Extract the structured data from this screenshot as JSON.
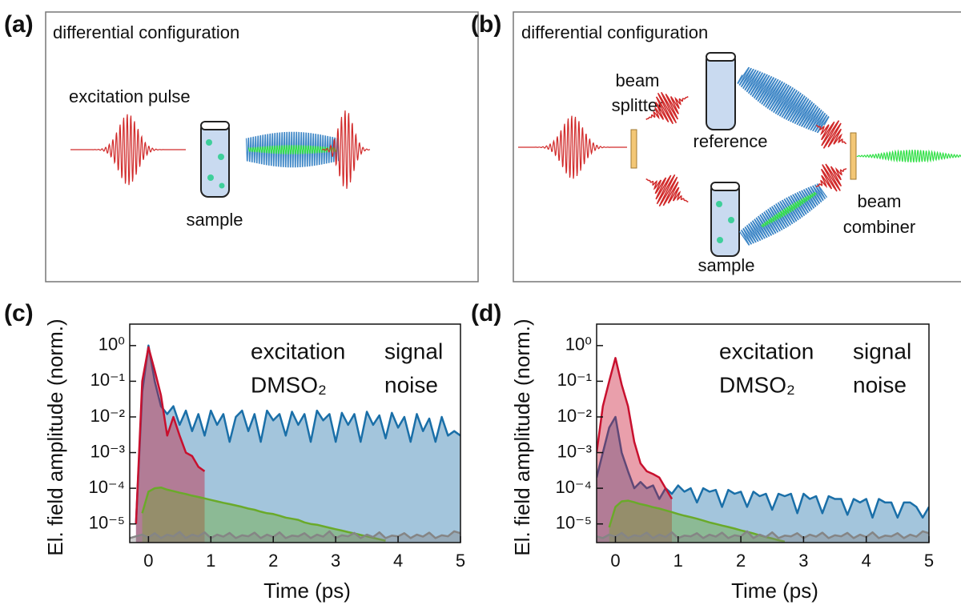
{
  "diagrams": [
    {
      "label": "(a)",
      "title": "differential configuration",
      "texts": [
        "excitation pulse",
        "sample"
      ]
    },
    {
      "label": "(b)",
      "title": "differential configuration",
      "texts": [
        "beam",
        "splitter",
        "reference",
        "sample",
        "beam",
        "combiner"
      ]
    }
  ],
  "chart_data": [
    {
      "type": "line",
      "panel_label": "(c)",
      "xlabel": "Time (ps)",
      "ylabel": "El. field amplitude (norm.)",
      "y_scale": "log",
      "legend": "upper right",
      "fill": true,
      "xlim": [
        -0.3,
        5
      ],
      "xticks": [
        0,
        1,
        2,
        3,
        4,
        5
      ],
      "ylim": [
        3e-06,
        4
      ],
      "yticks": [
        {
          "value": 1e-05,
          "label": "10⁻⁵"
        },
        {
          "value": 0.0001,
          "label": "10⁻⁴"
        },
        {
          "value": 0.001,
          "label": "10⁻³"
        },
        {
          "value": 0.01,
          "label": "10⁻²"
        },
        {
          "value": 0.1,
          "label": "10⁻¹"
        },
        {
          "value": 1,
          "label": "10⁰"
        }
      ],
      "x": [
        -0.3,
        -0.2,
        -0.1,
        0,
        0.1,
        0.2,
        0.3,
        0.4,
        0.5,
        0.6,
        0.7,
        0.8,
        0.9,
        1.0,
        1.1,
        1.2,
        1.3,
        1.4,
        1.5,
        1.6,
        1.7,
        1.8,
        1.9,
        2.0,
        2.1,
        2.2,
        2.3,
        2.4,
        2.5,
        2.6,
        2.7,
        2.8,
        2.9,
        3.0,
        3.1,
        3.2,
        3.3,
        3.4,
        3.5,
        3.6,
        3.7,
        3.8,
        3.9,
        4.0,
        4.1,
        4.2,
        4.3,
        4.4,
        4.5,
        4.6,
        4.7,
        4.8,
        4.9,
        5.0
      ],
      "series": [
        {
          "name": "excitation",
          "color": "#c8102e",
          "values": [
            null,
            1e-05,
            0.1,
            0.9,
            0.2,
            0.04,
            0.003,
            0.01,
            0.003,
            0.001,
            0.0008,
            0.0004,
            0.0003,
            null,
            null,
            null,
            null,
            null,
            null,
            null,
            null,
            null,
            null,
            null,
            null,
            null,
            null,
            null,
            null,
            null,
            null,
            null,
            null,
            null,
            null,
            null,
            null,
            null,
            null,
            null,
            null,
            null,
            null,
            null,
            null,
            null,
            null,
            null,
            null,
            null,
            null,
            null,
            null,
            null
          ]
        },
        {
          "name": "signal",
          "color": "#1a6fa8",
          "values": [
            null,
            1e-05,
            0.05,
            1.0,
            0.1,
            0.02,
            0.012,
            0.02,
            0.006,
            0.015,
            0.004,
            0.012,
            0.003,
            0.015,
            0.006,
            0.012,
            0.002,
            0.01,
            0.015,
            0.004,
            0.012,
            0.002,
            0.015,
            0.008,
            0.012,
            0.003,
            0.014,
            0.006,
            0.012,
            0.002,
            0.015,
            0.008,
            0.012,
            0.002,
            0.013,
            0.006,
            0.012,
            0.002,
            0.014,
            0.006,
            0.011,
            0.0025,
            0.013,
            0.005,
            0.01,
            0.002,
            0.012,
            0.004,
            0.009,
            0.002,
            0.01,
            0.003,
            0.004,
            0.003
          ]
        },
        {
          "name": "DMSO₂",
          "color": "#6aaa2a",
          "values": [
            null,
            null,
            2e-05,
            8e-05,
            0.0001,
            0.000105,
            9.1e-05,
            8.3e-05,
            7.5e-05,
            6.9e-05,
            6.2e-05,
            5.7e-05,
            5.2e-05,
            4.7e-05,
            4.3e-05,
            3.9e-05,
            3.6e-05,
            3.3e-05,
            3e-05,
            2.7e-05,
            2.5e-05,
            2.2e-05,
            2e-05,
            1.9e-05,
            1.7e-05,
            1.5e-05,
            1.4e-05,
            1.3e-05,
            1.1e-05,
            1e-05,
            9.5e-06,
            8.6e-06,
            7.8e-06,
            7.1e-06,
            6.5e-06,
            5.9e-06,
            5.4e-06,
            4.9e-06,
            4.5e-06,
            4.1e-06,
            3.7e-06,
            3.4e-06,
            null,
            null,
            null,
            null,
            null,
            null,
            null,
            null,
            null,
            null,
            null,
            null
          ]
        },
        {
          "name": "noise",
          "color": "#858585",
          "values": [
            4e-06,
            4.5e-06,
            5e-06,
            4.2e-06,
            5.5e-06,
            4e-06,
            5e-06,
            4.5e-06,
            6e-06,
            4e-06,
            5e-06,
            4.5e-06,
            5.8e-06,
            4e-06,
            5e-06,
            4.4e-06,
            5.6e-06,
            4e-06,
            4.8e-06,
            4.5e-06,
            5.7e-06,
            4e-06,
            5e-06,
            4.3e-06,
            5.8e-06,
            4e-06,
            4.7e-06,
            4.5e-06,
            5.5e-06,
            4e-06,
            5e-06,
            4.4e-06,
            6.2e-06,
            4e-06,
            4.8e-06,
            4.5e-06,
            5.6e-06,
            4e-06,
            5e-06,
            4.3e-06,
            5.8e-06,
            4e-06,
            4.7e-06,
            4.5e-06,
            5.5e-06,
            4e-06,
            5e-06,
            4.4e-06,
            5.7e-06,
            4e-06,
            4.8e-06,
            4.5e-06,
            6.2e-06,
            5.5e-06
          ]
        }
      ]
    },
    {
      "type": "line",
      "panel_label": "(d)",
      "xlabel": "Time (ps)",
      "ylabel": "El. field amplitude (norm.)",
      "y_scale": "log",
      "legend": "upper right",
      "fill": true,
      "xlim": [
        -0.3,
        5
      ],
      "xticks": [
        0,
        1,
        2,
        3,
        4,
        5
      ],
      "ylim": [
        3e-06,
        4
      ],
      "yticks": [
        {
          "value": 1e-05,
          "label": "10⁻⁵"
        },
        {
          "value": 0.0001,
          "label": "10⁻⁴"
        },
        {
          "value": 0.001,
          "label": "10⁻³"
        },
        {
          "value": 0.01,
          "label": "10⁻²"
        },
        {
          "value": 0.1,
          "label": "10⁻¹"
        },
        {
          "value": 1,
          "label": "10⁰"
        }
      ],
      "x": [
        -0.3,
        -0.2,
        -0.1,
        0,
        0.1,
        0.2,
        0.3,
        0.4,
        0.5,
        0.6,
        0.7,
        0.8,
        0.9,
        1.0,
        1.1,
        1.2,
        1.3,
        1.4,
        1.5,
        1.6,
        1.7,
        1.8,
        1.9,
        2.0,
        2.1,
        2.2,
        2.3,
        2.4,
        2.5,
        2.6,
        2.7,
        2.8,
        2.9,
        3.0,
        3.1,
        3.2,
        3.3,
        3.4,
        3.5,
        3.6,
        3.7,
        3.8,
        3.9,
        4.0,
        4.1,
        4.2,
        4.3,
        4.4,
        4.5,
        4.6,
        4.7,
        4.8,
        4.9,
        5.0
      ],
      "series": [
        {
          "name": "excitation",
          "color": "#c8102e",
          "values": [
            0.001,
            0.02,
            0.1,
            0.45,
            0.08,
            0.02,
            0.002,
            0.0005,
            0.0003,
            0.00025,
            0.0002,
            0.0001,
            5e-05,
            null,
            null,
            null,
            null,
            null,
            null,
            null,
            null,
            null,
            null,
            null,
            null,
            null,
            null,
            null,
            null,
            null,
            null,
            null,
            null,
            null,
            null,
            null,
            null,
            null,
            null,
            null,
            null,
            null,
            null,
            null,
            null,
            null,
            null,
            null,
            null,
            null,
            null,
            null,
            null,
            null
          ]
        },
        {
          "name": "signal",
          "color": "#1a6fa8",
          "values": [
            0.0002,
            0.001,
            0.005,
            0.01,
            0.001,
            0.0003,
            0.0001,
            0.00015,
            0.0001,
            0.00012,
            5e-05,
            0.0001,
            7e-05,
            0.00012,
            8e-05,
            0.0001,
            4e-05,
            0.0001,
            8e-05,
            9e-05,
            3e-05,
            9e-05,
            7e-05,
            8e-05,
            3e-05,
            8e-05,
            6e-05,
            7e-05,
            2.5e-05,
            7e-05,
            6e-05,
            7e-05,
            2e-05,
            7e-05,
            5e-05,
            6e-05,
            2e-05,
            6e-05,
            5e-05,
            5e-05,
            1.8e-05,
            5e-05,
            4e-05,
            5e-05,
            1.5e-05,
            5e-05,
            4e-05,
            4e-05,
            1.5e-05,
            4e-05,
            4e-05,
            3e-05,
            1.5e-05,
            3e-05
          ]
        },
        {
          "name": "DMSO₂",
          "color": "#6aaa2a",
          "values": [
            null,
            null,
            8e-06,
            3e-05,
            4.3e-05,
            4.5e-05,
            4.05e-05,
            3.6e-05,
            3.3e-05,
            2.95e-05,
            2.7e-05,
            2.4e-05,
            2.15e-05,
            1.9e-05,
            1.7e-05,
            1.55e-05,
            1.4e-05,
            1.25e-05,
            1.1e-05,
            1e-05,
            9e-06,
            8.2e-06,
            7.4e-06,
            6.6e-06,
            6e-06,
            5.4e-06,
            4.8e-06,
            4.3e-06,
            3.9e-06,
            3.5e-06,
            3.2e-06,
            null,
            null,
            null,
            null,
            null,
            null,
            null,
            null,
            null,
            null,
            null,
            null,
            null,
            null,
            null,
            null,
            null,
            null,
            null,
            null,
            null,
            null,
            null
          ]
        },
        {
          "name": "noise",
          "color": "#858585",
          "values": [
            4.5e-06,
            4e-06,
            5e-06,
            4.4e-06,
            5.6e-06,
            4e-06,
            4.8e-06,
            4.5e-06,
            5.7e-06,
            4e-06,
            5e-06,
            4.3e-06,
            5.8e-06,
            4e-06,
            4.7e-06,
            4.5e-06,
            5.5e-06,
            4e-06,
            5e-06,
            4.4e-06,
            5.7e-06,
            4e-06,
            4.8e-06,
            4.5e-06,
            6.2e-06,
            4e-06,
            5e-06,
            4.3e-06,
            5.8e-06,
            4e-06,
            4.7e-06,
            4.5e-06,
            5.5e-06,
            4e-06,
            5e-06,
            4.4e-06,
            5.7e-06,
            4e-06,
            4.8e-06,
            4.5e-06,
            5.6e-06,
            4e-06,
            5e-06,
            4.3e-06,
            5.8e-06,
            4e-06,
            4.7e-06,
            4.5e-06,
            5.5e-06,
            4e-06,
            5e-06,
            4.4e-06,
            6.2e-06,
            5.5e-06
          ]
        }
      ]
    }
  ]
}
